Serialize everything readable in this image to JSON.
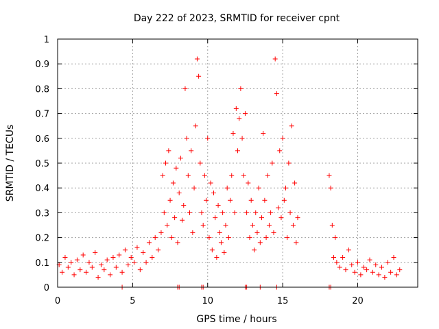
{
  "chart_data": {
    "type": "scatter",
    "title": "Day 222 of 2023, SRMTID for receiver cpnt",
    "xlabel": "GPS time / hours",
    "ylabel": "SRMTID / TECUs",
    "xlim": [
      0,
      24
    ],
    "ylim": [
      0,
      1
    ],
    "xticks": [
      0,
      5,
      10,
      15,
      20
    ],
    "yticks": [
      0,
      0.1,
      0.2,
      0.3,
      0.4,
      0.5,
      0.6,
      0.7,
      0.8,
      0.9,
      1
    ],
    "grid": true,
    "marker": "+",
    "color": "#ff0000",
    "series": [
      {
        "name": "SRMTID",
        "points": [
          [
            0.1,
            0.09
          ],
          [
            0.3,
            0.06
          ],
          [
            0.5,
            0.12
          ],
          [
            0.7,
            0.08
          ],
          [
            0.9,
            0.1
          ],
          [
            1.1,
            0.05
          ],
          [
            1.3,
            0.11
          ],
          [
            1.5,
            0.07
          ],
          [
            1.7,
            0.13
          ],
          [
            1.9,
            0.06
          ],
          [
            2.1,
            0.1
          ],
          [
            2.3,
            0.08
          ],
          [
            2.5,
            0.14
          ],
          [
            2.7,
            0.04
          ],
          [
            2.9,
            0.09
          ],
          [
            3.1,
            0.07
          ],
          [
            3.3,
            0.11
          ],
          [
            3.5,
            0.05
          ],
          [
            3.7,
            0.12
          ],
          [
            3.9,
            0.08
          ],
          [
            4.1,
            0.13
          ],
          [
            4.3,
            0.06
          ],
          [
            4.5,
            0.15
          ],
          [
            4.7,
            0.09
          ],
          [
            4.9,
            0.12
          ],
          [
            5.1,
            0.1
          ],
          [
            5.3,
            0.16
          ],
          [
            5.5,
            0.07
          ],
          [
            5.7,
            0.14
          ],
          [
            5.9,
            0.1
          ],
          [
            6.1,
            0.18
          ],
          [
            6.3,
            0.12
          ],
          [
            6.5,
            0.2
          ],
          [
            6.7,
            0.15
          ],
          [
            6.9,
            0.22
          ],
          [
            7.0,
            0.45
          ],
          [
            7.1,
            0.3
          ],
          [
            7.2,
            0.5
          ],
          [
            7.3,
            0.25
          ],
          [
            7.4,
            0.55
          ],
          [
            7.5,
            0.35
          ],
          [
            7.6,
            0.2
          ],
          [
            7.7,
            0.42
          ],
          [
            7.8,
            0.28
          ],
          [
            7.9,
            0.48
          ],
          [
            8.0,
            0.18
          ],
          [
            8.1,
            0.38
          ],
          [
            8.2,
            0.52
          ],
          [
            8.3,
            0.27
          ],
          [
            8.4,
            0.33
          ],
          [
            8.5,
            0.8
          ],
          [
            8.6,
            0.6
          ],
          [
            8.7,
            0.45
          ],
          [
            8.8,
            0.3
          ],
          [
            8.9,
            0.55
          ],
          [
            9.0,
            0.22
          ],
          [
            9.1,
            0.4
          ],
          [
            9.2,
            0.65
          ],
          [
            9.3,
            0.92
          ],
          [
            9.4,
            0.85
          ],
          [
            9.5,
            0.5
          ],
          [
            9.6,
            0.3
          ],
          [
            9.7,
            0.25
          ],
          [
            9.8,
            0.45
          ],
          [
            9.9,
            0.35
          ],
          [
            10.0,
            0.6
          ],
          [
            10.1,
            0.2
          ],
          [
            10.2,
            0.42
          ],
          [
            10.3,
            0.15
          ],
          [
            10.4,
            0.38
          ],
          [
            10.5,
            0.28
          ],
          [
            10.6,
            0.12
          ],
          [
            10.7,
            0.33
          ],
          [
            10.8,
            0.22
          ],
          [
            10.9,
            0.18
          ],
          [
            11.0,
            0.3
          ],
          [
            11.1,
            0.14
          ],
          [
            11.2,
            0.25
          ],
          [
            11.3,
            0.4
          ],
          [
            11.4,
            0.2
          ],
          [
            11.5,
            0.35
          ],
          [
            11.6,
            0.45
          ],
          [
            11.7,
            0.62
          ],
          [
            11.8,
            0.3
          ],
          [
            11.9,
            0.72
          ],
          [
            12.0,
            0.55
          ],
          [
            12.1,
            0.68
          ],
          [
            12.2,
            0.8
          ],
          [
            12.3,
            0.6
          ],
          [
            12.4,
            0.45
          ],
          [
            12.5,
            0.7
          ],
          [
            12.6,
            0.3
          ],
          [
            12.7,
            0.42
          ],
          [
            12.8,
            0.2
          ],
          [
            12.9,
            0.35
          ],
          [
            13.0,
            0.25
          ],
          [
            13.1,
            0.15
          ],
          [
            13.2,
            0.3
          ],
          [
            13.3,
            0.22
          ],
          [
            13.4,
            0.4
          ],
          [
            13.5,
            0.18
          ],
          [
            13.6,
            0.28
          ],
          [
            13.7,
            0.62
          ],
          [
            13.8,
            0.35
          ],
          [
            13.9,
            0.2
          ],
          [
            14.0,
            0.45
          ],
          [
            14.1,
            0.25
          ],
          [
            14.2,
            0.3
          ],
          [
            14.3,
            0.5
          ],
          [
            14.4,
            0.22
          ],
          [
            14.5,
            0.92
          ],
          [
            14.6,
            0.78
          ],
          [
            14.7,
            0.32
          ],
          [
            14.8,
            0.55
          ],
          [
            14.9,
            0.28
          ],
          [
            15.0,
            0.6
          ],
          [
            15.1,
            0.35
          ],
          [
            15.2,
            0.4
          ],
          [
            15.3,
            0.2
          ],
          [
            15.4,
            0.5
          ],
          [
            15.5,
            0.3
          ],
          [
            15.6,
            0.65
          ],
          [
            15.7,
            0.25
          ],
          [
            15.8,
            0.42
          ],
          [
            15.9,
            0.18
          ],
          [
            16.0,
            0.28
          ],
          [
            18.1,
            0.45
          ],
          [
            18.2,
            0.4
          ],
          [
            18.3,
            0.25
          ],
          [
            18.4,
            0.12
          ],
          [
            18.5,
            0.2
          ],
          [
            18.6,
            0.1
          ],
          [
            18.8,
            0.08
          ],
          [
            19.0,
            0.12
          ],
          [
            19.2,
            0.07
          ],
          [
            19.4,
            0.15
          ],
          [
            19.6,
            0.09
          ],
          [
            19.8,
            0.06
          ],
          [
            20.0,
            0.1
          ],
          [
            20.2,
            0.05
          ],
          [
            20.4,
            0.08
          ],
          [
            20.6,
            0.07
          ],
          [
            20.8,
            0.11
          ],
          [
            21.0,
            0.06
          ],
          [
            21.2,
            0.09
          ],
          [
            21.4,
            0.05
          ],
          [
            21.6,
            0.08
          ],
          [
            21.8,
            0.04
          ],
          [
            22.0,
            0.1
          ],
          [
            22.2,
            0.06
          ],
          [
            22.4,
            0.12
          ],
          [
            22.6,
            0.05
          ],
          [
            22.8,
            0.07
          ]
        ],
        "zero_points": [
          4.3,
          8.0,
          8.1,
          9.6,
          9.7,
          12.5,
          12.6,
          13.5,
          14.6,
          18.1,
          18.2
        ]
      }
    ]
  }
}
